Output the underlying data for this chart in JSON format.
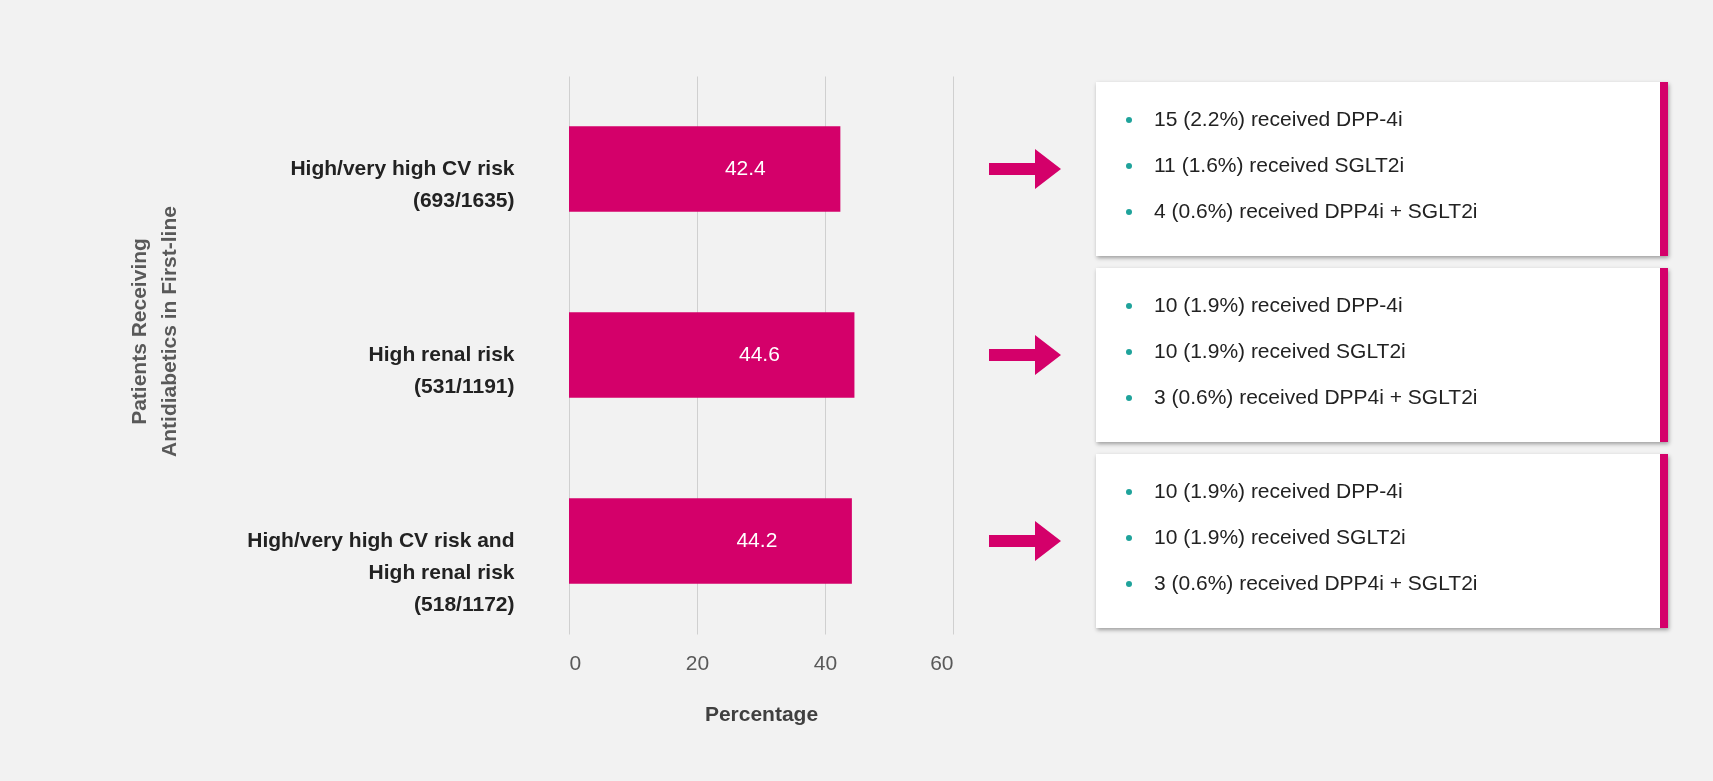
{
  "chart_data": {
    "type": "bar",
    "orientation": "horizontal",
    "categories": [
      "High/very high CV risk\n(693/1635)",
      "High renal risk\n(531/1191)",
      "High/very high CV risk and\nHigh renal risk\n(518/1172)"
    ],
    "values": [
      42.4,
      44.6,
      44.2
    ],
    "color": "#d4006a",
    "data_labels": true,
    "xlim": [
      0,
      60
    ],
    "xticks": [
      0,
      20,
      40,
      60
    ],
    "grid": "x",
    "xlabel": "Percentage",
    "ylabel": "Patients Receiving\nAntidiabetics in First-line",
    "annotations": [
      "15 (2.2%) received DPP-4i\n11 (1.6%) received SGLT2i\n4 (0.6%) received DPP4i + SGLT2i",
      "10 (1.9%) received DPP-4i\n10 (1.9%) received SGLT2i\n3 (0.6%) received DPP4i + SGLT2i",
      "10 (1.9%) received DPP-4i\n10 (1.9%) received SGLT2i\n3 (0.6%) received DPP4i + SGLT2i"
    ]
  }
}
